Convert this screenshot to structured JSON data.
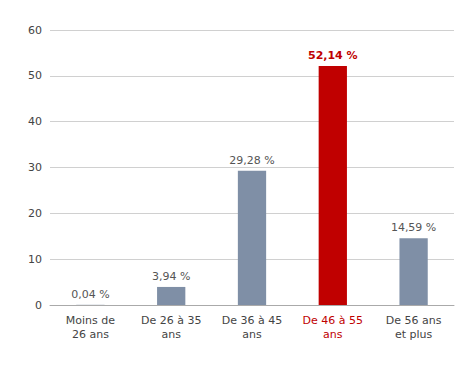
{
  "chart_data": {
    "type": "bar",
    "categories": [
      "Moins de\n26 ans",
      "De 26 à 35\nans",
      "De 36 à 45\nans",
      "De 46 à 55\nans",
      "De 56 ans\net plus"
    ],
    "values": [
      0.04,
      3.94,
      29.28,
      52.14,
      14.59
    ],
    "value_labels": [
      "0,04 %",
      "3,94 %",
      "29,28 %",
      "52,14 %",
      "14,59 %"
    ],
    "colors": [
      "#7f8fa6",
      "#7f8fa6",
      "#7f8fa6",
      "#c00000",
      "#7f8fa6"
    ],
    "ylim": [
      0,
      60
    ],
    "yticks": [
      0,
      10,
      20,
      30,
      40,
      50,
      60
    ],
    "grid": true,
    "data_labels": true
  }
}
